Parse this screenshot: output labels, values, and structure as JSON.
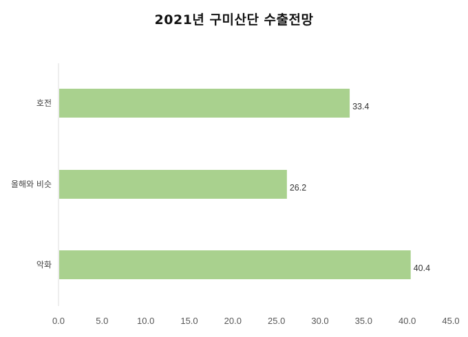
{
  "chart_data": {
    "type": "bar",
    "orientation": "horizontal",
    "title": "2021년 구미산단 수출전망",
    "categories": [
      "호전",
      "올해와 비슷",
      "악화"
    ],
    "values": [
      33.4,
      26.2,
      40.4
    ],
    "value_labels": [
      "33.4",
      "26.2",
      "40.4"
    ],
    "xlim": [
      0,
      45
    ],
    "x_ticks": [
      0,
      5,
      10,
      15,
      20,
      25,
      30,
      35,
      40,
      45
    ],
    "x_tick_labels": [
      "0.0",
      "5.0",
      "10.0",
      "15.0",
      "20.0",
      "25.0",
      "30.0",
      "35.0",
      "40.0",
      "45.0"
    ],
    "grid": false,
    "legend": "none",
    "colors": {
      "bar": "#a9d18e",
      "axis": "#dddddd"
    }
  }
}
